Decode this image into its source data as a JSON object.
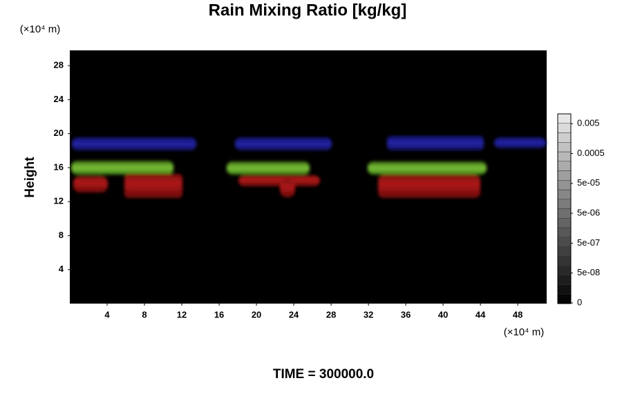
{
  "chart_data": {
    "type": "field",
    "title": "Rain Mixing Ratio [kg/kg]",
    "ylabel": "Height",
    "y_unit": "(×10⁴ m)",
    "x_unit": "(×10⁴ m)",
    "footer": "TIME = 300000.0",
    "xlim": [
      0,
      51.1
    ],
    "xticks": [
      4,
      8,
      12,
      16,
      20,
      24,
      28,
      32,
      36,
      40,
      44,
      48
    ],
    "ylim": [
      0,
      29.8
    ],
    "yticks": [
      4,
      8,
      12,
      16,
      20,
      24,
      28
    ],
    "colorbar_ticks": [
      0,
      {
        "value": 5e-08,
        "label": "5e-08"
      },
      {
        "value": 5e-07,
        "label": "5e-07"
      },
      {
        "value": 5e-06,
        "label": "5e-06"
      },
      {
        "value": 5e-05,
        "label": "5e-05"
      },
      0.0005,
      0.005
    ]
  }
}
